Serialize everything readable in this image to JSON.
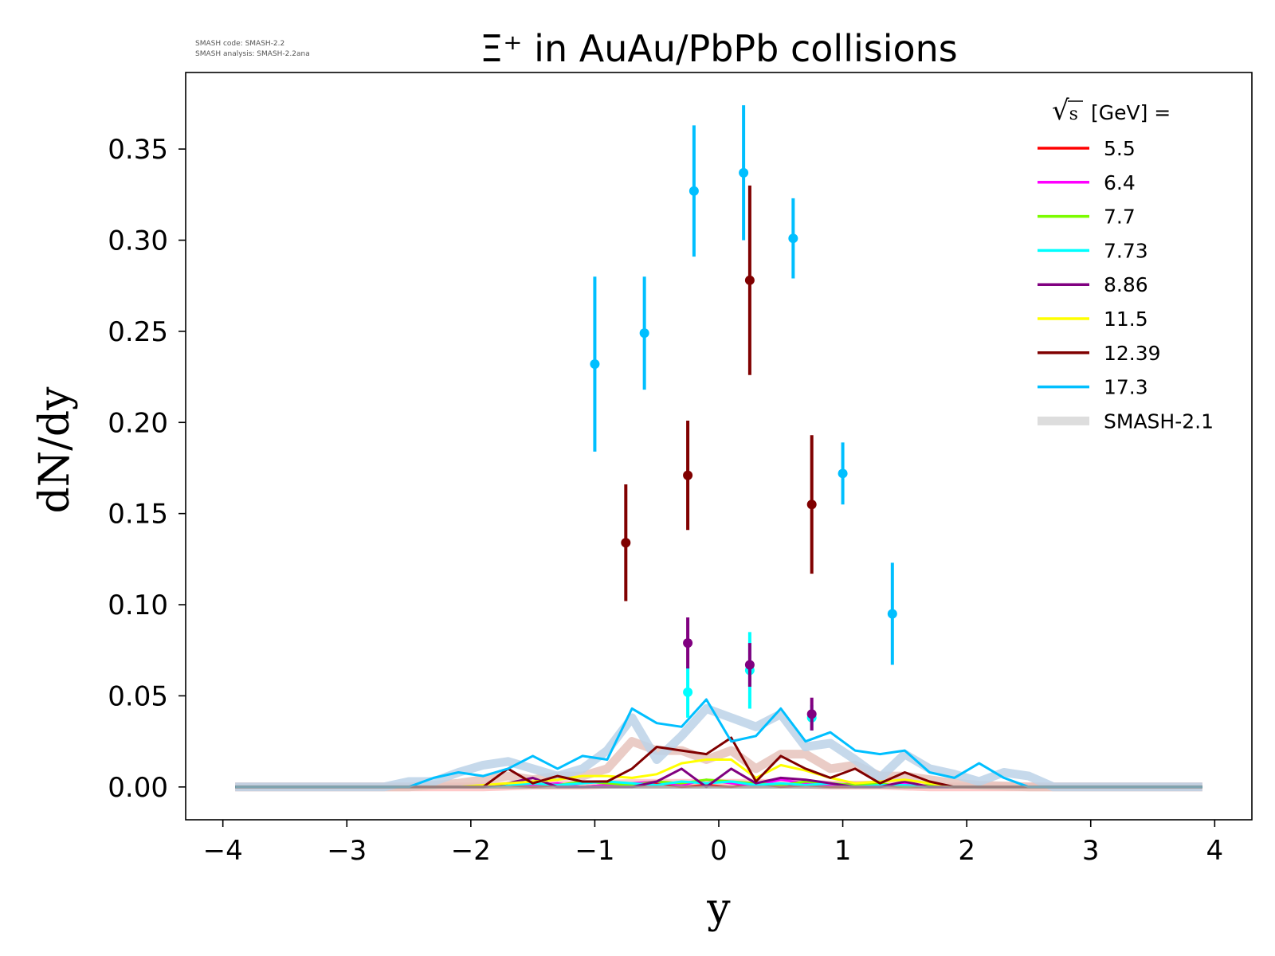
{
  "chart_data": {
    "type": "line",
    "title": "Ξ⁺ in AuAu/PbPb collisions",
    "xlabel": "y",
    "ylabel": "dN/dy",
    "xlim": [
      -4.3,
      4.3
    ],
    "ylim": [
      -0.018,
      0.392
    ],
    "xticks": [
      -4,
      -3,
      -2,
      -1,
      0,
      1,
      2,
      3,
      4
    ],
    "xtick_labels": [
      "−4",
      "−3",
      "−2",
      "−1",
      "0",
      "1",
      "2",
      "3",
      "4"
    ],
    "yticks": [
      0.0,
      0.05,
      0.1,
      0.15,
      0.2,
      0.25,
      0.3,
      0.35
    ],
    "ytick_labels": [
      "0.00",
      "0.05",
      "0.10",
      "0.15",
      "0.20",
      "0.25",
      "0.30",
      "0.35"
    ],
    "grid": false,
    "legend_position": "top-right",
    "legend_title_radical": "√",
    "legend_title_var": "s",
    "legend_title_rest": "[GeV] =",
    "info_line1": "SMASH code:      SMASH-2.2",
    "info_line2": "SMASH analysis: SMASH-2.2ana",
    "series": [
      {
        "name": "5.5",
        "color": "#ff0000",
        "x": [
          -3.9,
          -2.5,
          -2.3,
          -2.1,
          -1.9,
          -1.7,
          -1.5,
          -1.3,
          -1.1,
          -0.9,
          -0.7,
          -0.5,
          -0.3,
          -0.1,
          0.1,
          0.3,
          0.5,
          0.7,
          0.9,
          1.1,
          1.3,
          1.5,
          1.7,
          1.9,
          2.1,
          2.3,
          2.5,
          3.9
        ],
        "y": [
          0,
          0,
          0,
          0,
          0,
          0.001,
          0,
          0.001,
          0,
          0.001,
          0,
          0.002,
          0,
          0.001,
          0,
          0.002,
          0,
          0.001,
          0,
          0,
          0.001,
          0,
          0,
          0,
          0,
          0,
          0,
          0
        ],
        "points": []
      },
      {
        "name": "6.4",
        "color": "#ff00ff",
        "x": [
          -3.9,
          -2.3,
          -2.1,
          -1.9,
          -1.7,
          -1.5,
          -1.3,
          -1.1,
          -0.9,
          -0.7,
          -0.5,
          -0.3,
          -0.1,
          0.1,
          0.3,
          0.5,
          0.7,
          0.9,
          1.1,
          1.3,
          1.5,
          1.7,
          1.9,
          2.1,
          3.9
        ],
        "y": [
          0,
          0,
          0,
          0,
          0.002,
          0.001,
          0.002,
          0,
          0.001,
          0.002,
          0.003,
          0.001,
          0.004,
          0.002,
          0.001,
          0.004,
          0.002,
          0.001,
          0.002,
          0,
          0.002,
          0,
          0,
          0,
          0
        ],
        "points": []
      },
      {
        "name": "7.7",
        "color": "#7cfc00",
        "x": [
          -3.9,
          -2.1,
          -1.9,
          -1.7,
          -1.5,
          -1.3,
          -1.1,
          -0.9,
          -0.7,
          -0.5,
          -0.3,
          -0.1,
          0.1,
          0.3,
          0.5,
          0.7,
          0.9,
          1.1,
          1.3,
          1.5,
          1.7,
          1.9,
          2.1,
          3.9
        ],
        "y": [
          0,
          0,
          0,
          0.001,
          0.002,
          0.001,
          0.003,
          0.002,
          0.001,
          0.003,
          0.002,
          0.004,
          0.003,
          0.002,
          0.001,
          0.003,
          0.002,
          0.001,
          0.002,
          0,
          0.001,
          0,
          0,
          0
        ],
        "points": []
      },
      {
        "name": "7.73",
        "color": "#00ffff",
        "x": [
          -3.9,
          -2.1,
          -1.9,
          -1.7,
          -1.5,
          -1.3,
          -1.1,
          -0.9,
          -0.7,
          -0.5,
          -0.3,
          -0.1,
          0.1,
          0.3,
          0.5,
          0.7,
          0.9,
          1.1,
          1.3,
          1.5,
          1.7,
          1.9,
          2.1,
          3.9
        ],
        "y": [
          0,
          0,
          0,
          0.001,
          0.002,
          0.001,
          0.002,
          0.003,
          0.002,
          0.001,
          0.003,
          0.002,
          0.003,
          0.001,
          0.002,
          0.001,
          0.002,
          0,
          0.001,
          0.001,
          0,
          0,
          0,
          0
        ],
        "points": [
          {
            "x": -0.25,
            "y": 0.052,
            "err": 0.014
          },
          {
            "x": 0.25,
            "y": 0.064,
            "err": 0.021
          },
          {
            "x": 0.75,
            "y": 0.038,
            "err": 0.007
          }
        ]
      },
      {
        "name": "8.86",
        "color": "#800080",
        "x": [
          -3.9,
          -2.1,
          -1.9,
          -1.7,
          -1.5,
          -1.3,
          -1.1,
          -0.9,
          -0.7,
          -0.5,
          -0.3,
          -0.1,
          0.1,
          0.3,
          0.5,
          0.7,
          0.9,
          1.1,
          1.3,
          1.5,
          1.7,
          1.9,
          2.1,
          3.9
        ],
        "y": [
          0,
          0,
          0,
          0.002,
          0.005,
          0,
          0,
          0,
          0,
          0.003,
          0.01,
          0,
          0.01,
          0.002,
          0.005,
          0.004,
          0.002,
          0,
          0,
          0.003,
          0,
          0,
          0,
          0
        ],
        "points": [
          {
            "x": -0.25,
            "y": 0.079,
            "err": 0.014
          },
          {
            "x": 0.25,
            "y": 0.067,
            "err": 0.012
          },
          {
            "x": 0.75,
            "y": 0.04,
            "err": 0.009
          }
        ]
      },
      {
        "name": "11.5",
        "color": "#ffff00",
        "x": [
          -3.9,
          -2.1,
          -1.9,
          -1.7,
          -1.5,
          -1.3,
          -1.1,
          -0.9,
          -0.7,
          -0.5,
          -0.3,
          -0.1,
          0.1,
          0.3,
          0.5,
          0.7,
          0.9,
          1.1,
          1.3,
          1.5,
          1.7,
          1.9,
          2.1,
          3.9
        ],
        "y": [
          0,
          0,
          0.001,
          0.002,
          0.003,
          0.004,
          0.006,
          0.006,
          0.005,
          0.007,
          0.013,
          0.015,
          0.015,
          0.005,
          0.012,
          0.009,
          0.005,
          0.002,
          0.003,
          0.004,
          0.002,
          0,
          0,
          0
        ],
        "points": []
      },
      {
        "name": "12.39",
        "color": "#800000",
        "x": [
          -3.9,
          -2.5,
          -2.3,
          -2.1,
          -1.9,
          -1.7,
          -1.5,
          -1.3,
          -1.1,
          -0.9,
          -0.7,
          -0.5,
          -0.3,
          -0.1,
          0.1,
          0.3,
          0.5,
          0.7,
          0.9,
          1.1,
          1.3,
          1.5,
          1.7,
          1.9,
          2.1,
          2.3,
          3.9
        ],
        "y": [
          0,
          0,
          0,
          0,
          0,
          0.01,
          0.002,
          0.006,
          0.003,
          0.003,
          0.01,
          0.022,
          0.02,
          0.018,
          0.027,
          0.003,
          0.017,
          0.01,
          0.005,
          0.01,
          0.002,
          0.008,
          0.003,
          0,
          0,
          0,
          0
        ],
        "points": [
          {
            "x": -0.75,
            "y": 0.134,
            "err": 0.032
          },
          {
            "x": -0.25,
            "y": 0.171,
            "err": 0.03
          },
          {
            "x": 0.25,
            "y": 0.278,
            "err": 0.052
          },
          {
            "x": 0.75,
            "y": 0.155,
            "err": 0.038
          }
        ]
      },
      {
        "name": "17.3",
        "color": "#00bfff",
        "x": [
          -3.9,
          -2.5,
          -2.3,
          -2.1,
          -1.9,
          -1.7,
          -1.5,
          -1.3,
          -1.1,
          -0.9,
          -0.7,
          -0.5,
          -0.3,
          -0.1,
          0.1,
          0.3,
          0.5,
          0.7,
          0.9,
          1.1,
          1.3,
          1.5,
          1.7,
          1.9,
          2.1,
          2.3,
          2.5,
          3.9
        ],
        "y": [
          0,
          0,
          0.005,
          0.008,
          0.006,
          0.01,
          0.017,
          0.01,
          0.017,
          0.015,
          0.043,
          0.035,
          0.033,
          0.048,
          0.025,
          0.028,
          0.043,
          0.025,
          0.03,
          0.02,
          0.018,
          0.02,
          0.008,
          0.005,
          0.013,
          0.005,
          0,
          0
        ],
        "points": [
          {
            "x": -1.0,
            "y": 0.232,
            "err": 0.048
          },
          {
            "x": -0.6,
            "y": 0.249,
            "err": 0.031
          },
          {
            "x": -0.2,
            "y": 0.327,
            "err": 0.036
          },
          {
            "x": 0.2,
            "y": 0.337,
            "err": 0.037
          },
          {
            "x": 0.6,
            "y": 0.301,
            "err": 0.022
          },
          {
            "x": 1.0,
            "y": 0.172,
            "err": 0.017
          },
          {
            "x": 1.4,
            "y": 0.095,
            "err": 0.028
          }
        ]
      },
      {
        "name": "SMASH-2.1",
        "color": "#dddddd",
        "reference": true,
        "points": []
      }
    ],
    "reference_curves": [
      {
        "match": "5.5",
        "color": "#ffc0c0",
        "x": [
          -3.9,
          -2.3,
          -1.9,
          -1.5,
          -1.1,
          -0.7,
          -0.3,
          0.1,
          0.5,
          0.9,
          1.3,
          1.7,
          2.1,
          2.5,
          3.9
        ],
        "y": [
          0,
          0,
          0,
          0.001,
          0.001,
          0.002,
          0.002,
          0.002,
          0.002,
          0.001,
          0.001,
          0,
          0,
          0,
          0
        ]
      },
      {
        "match": "12.39",
        "color": "#e6c3bc",
        "x": [
          -3.9,
          -2.5,
          -2.1,
          -1.7,
          -1.5,
          -1.3,
          -1.1,
          -0.9,
          -0.7,
          -0.5,
          -0.3,
          -0.1,
          0.1,
          0.3,
          0.5,
          0.7,
          0.9,
          1.1,
          1.3,
          1.5,
          1.7,
          1.9,
          2.1,
          2.5,
          3.9
        ],
        "y": [
          0,
          0,
          0.002,
          0.006,
          0.004,
          0.006,
          0.006,
          0.01,
          0.025,
          0.02,
          0.02,
          0.015,
          0.02,
          0.01,
          0.018,
          0.018,
          0.01,
          0.012,
          0.006,
          0.006,
          0.004,
          0.002,
          0.001,
          0,
          0
        ]
      },
      {
        "match": "17.3",
        "color": "#bcd2e8",
        "x": [
          -3.9,
          -2.7,
          -2.5,
          -2.3,
          -2.1,
          -1.9,
          -1.7,
          -1.5,
          -1.3,
          -1.1,
          -0.9,
          -0.7,
          -0.5,
          -0.3,
          -0.1,
          0.1,
          0.3,
          0.5,
          0.7,
          0.9,
          1.1,
          1.3,
          1.5,
          1.7,
          1.9,
          2.1,
          2.3,
          2.5,
          2.7,
          3.9
        ],
        "y": [
          0,
          0,
          0.003,
          0.003,
          0.008,
          0.012,
          0.014,
          0.01,
          0.006,
          0.01,
          0.02,
          0.038,
          0.015,
          0.028,
          0.043,
          0.038,
          0.033,
          0.04,
          0.022,
          0.024,
          0.015,
          0.005,
          0.018,
          0.01,
          0.007,
          0.003,
          0.008,
          0.006,
          0,
          0
        ]
      }
    ]
  }
}
